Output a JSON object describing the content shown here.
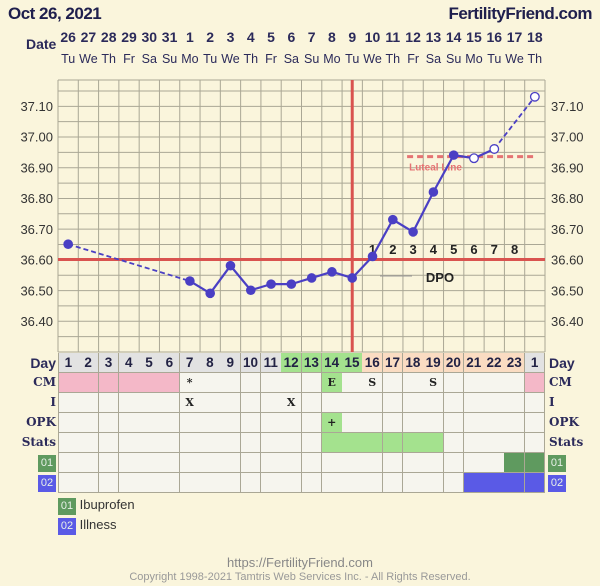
{
  "header": {
    "date": "Oct 26, 2021",
    "brand": "FertilityFriend.com",
    "date_label": "Date"
  },
  "colors": {
    "background": "#faf5dc",
    "temp_line": "#4a3fc4",
    "coverline": "#d9534f",
    "luteal": "#e57373",
    "grid": "#aaa795",
    "pink": "#f4b8c8",
    "green": "#a4e28e",
    "peach": "#fadcc2",
    "gray": "#e2e2e2",
    "tag01": "#5f9a5f",
    "tag02": "#5a5ae6"
  },
  "row_labels": {
    "day": "Day",
    "cm": "CM",
    "i": "I",
    "opk": "OPK",
    "stats": "Stats",
    "tag01": "01",
    "tag02": "02"
  },
  "legend": [
    {
      "code": "01",
      "label": "Ibuprofen"
    },
    {
      "code": "02",
      "label": "Illness"
    }
  ],
  "footer": {
    "url": "https://FertilityFriend.com",
    "copyright": "Copyright 1998-2021 Tamtris Web Services Inc. - All Rights Reserved."
  },
  "chart_data": {
    "type": "line",
    "title": "Oct 26, 2021",
    "dates": [
      "26",
      "27",
      "28",
      "29",
      "30",
      "31",
      "1",
      "2",
      "3",
      "4",
      "5",
      "6",
      "7",
      "8",
      "9",
      "10",
      "11",
      "12",
      "13",
      "14",
      "15",
      "16",
      "17",
      "18"
    ],
    "weekdays": [
      "Tu",
      "We",
      "Th",
      "Fr",
      "Sa",
      "Su",
      "Mo",
      "Tu",
      "We",
      "Th",
      "Fr",
      "Sa",
      "Su",
      "Mo",
      "Tu",
      "We",
      "Th",
      "Fr",
      "Sa",
      "Su",
      "Mo",
      "Tu",
      "We",
      "Th"
    ],
    "cycle_days": [
      "1",
      "2",
      "3",
      "4",
      "5",
      "6",
      "7",
      "8",
      "9",
      "10",
      "11",
      "12",
      "13",
      "14",
      "15",
      "16",
      "17",
      "18",
      "19",
      "20",
      "21",
      "22",
      "23",
      "1"
    ],
    "day_colors": [
      "gray",
      "gray",
      "gray",
      "gray",
      "gray",
      "gray",
      "gray",
      "gray",
      "gray",
      "gray",
      "gray",
      "green",
      "green",
      "green",
      "green",
      "peach",
      "peach",
      "peach",
      "peach",
      "peach",
      "peach",
      "peach",
      "peach",
      "gray"
    ],
    "temperatures": [
      36.65,
      null,
      null,
      null,
      null,
      null,
      36.53,
      36.49,
      36.58,
      36.5,
      36.52,
      36.52,
      36.54,
      36.56,
      36.54,
      36.61,
      36.73,
      36.69,
      36.82,
      36.94,
      36.93,
      36.96,
      null,
      37.13
    ],
    "open_points": [
      20,
      21,
      23
    ],
    "ylim": [
      36.3,
      37.185
    ],
    "yticks": [
      "37.10",
      "37.00",
      "36.90",
      "36.80",
      "36.70",
      "36.60",
      "36.50",
      "36.40"
    ],
    "coverline": 36.6,
    "ovulation_day_index": 14,
    "luteal_line": {
      "value": 36.935,
      "label": "Luteal Line",
      "from_index": 17,
      "to_index": 23
    },
    "dpo": {
      "label": "DPO",
      "numbers": [
        "1",
        "2",
        "3",
        "4",
        "5",
        "6",
        "7",
        "8"
      ],
      "start_index": 15
    },
    "cm": {
      "0": "pink",
      "1": "pink",
      "2": "pink",
      "3": "pink",
      "4": "pink",
      "5": "pink",
      "6": "*",
      "13": "E",
      "15": "S",
      "18": "S",
      "23": "pink"
    },
    "intercourse": {
      "6": "X",
      "11": "X"
    },
    "opk": {
      "13": "+"
    },
    "stats_green": [
      13,
      14,
      15,
      16,
      17,
      18
    ],
    "tag01_days": [
      22,
      23
    ],
    "tag02_days": [
      20,
      21,
      22,
      23
    ]
  }
}
